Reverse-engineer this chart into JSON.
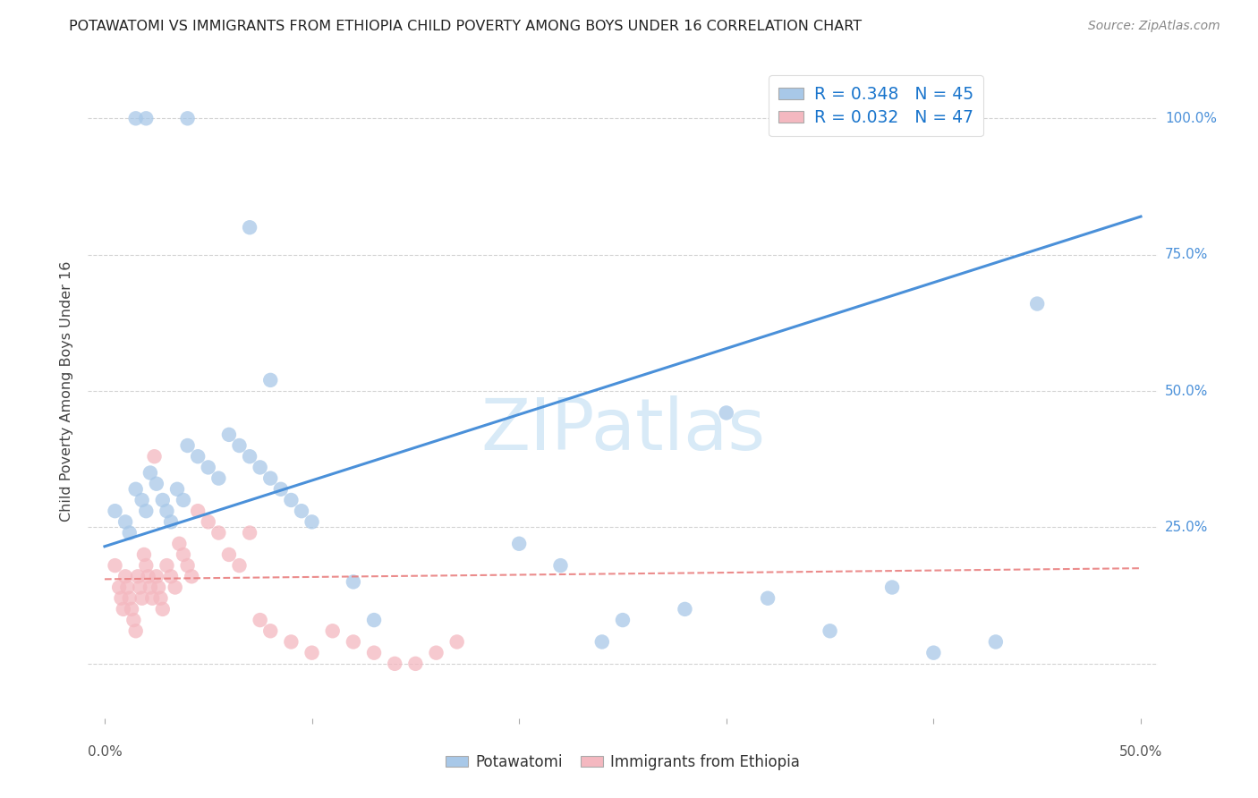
{
  "title": "POTAWATOMI VS IMMIGRANTS FROM ETHIOPIA CHILD POVERTY AMONG BOYS UNDER 16 CORRELATION CHART",
  "source": "Source: ZipAtlas.com",
  "ylabel": "Child Poverty Among Boys Under 16",
  "legend_label1": "R = 0.348   N = 45",
  "legend_label2": "R = 0.032   N = 47",
  "legend_bottom1": "Potawatomi",
  "legend_bottom2": "Immigrants from Ethiopia",
  "color_blue": "#a8c8e8",
  "color_pink": "#f4b8c0",
  "color_blue_line": "#4a90d9",
  "color_pink_line": "#e87878",
  "watermark_color": "#d8eaf7",
  "blue_scatter_x": [
    0.015,
    0.02,
    0.04,
    0.07,
    0.08,
    0.005,
    0.01,
    0.012,
    0.015,
    0.018,
    0.02,
    0.022,
    0.025,
    0.028,
    0.03,
    0.032,
    0.035,
    0.038,
    0.04,
    0.045,
    0.05,
    0.055,
    0.06,
    0.065,
    0.07,
    0.075,
    0.08,
    0.085,
    0.09,
    0.095,
    0.1,
    0.12,
    0.13,
    0.2,
    0.22,
    0.24,
    0.25,
    0.28,
    0.3,
    0.32,
    0.35,
    0.38,
    0.4,
    0.43,
    0.45
  ],
  "blue_scatter_y": [
    1.0,
    1.0,
    1.0,
    0.8,
    0.52,
    0.28,
    0.26,
    0.24,
    0.32,
    0.3,
    0.28,
    0.35,
    0.33,
    0.3,
    0.28,
    0.26,
    0.32,
    0.3,
    0.4,
    0.38,
    0.36,
    0.34,
    0.42,
    0.4,
    0.38,
    0.36,
    0.34,
    0.32,
    0.3,
    0.28,
    0.26,
    0.15,
    0.08,
    0.22,
    0.18,
    0.04,
    0.08,
    0.1,
    0.46,
    0.12,
    0.06,
    0.14,
    0.02,
    0.04,
    0.66
  ],
  "pink_scatter_x": [
    0.005,
    0.007,
    0.008,
    0.009,
    0.01,
    0.011,
    0.012,
    0.013,
    0.014,
    0.015,
    0.016,
    0.017,
    0.018,
    0.019,
    0.02,
    0.021,
    0.022,
    0.023,
    0.024,
    0.025,
    0.026,
    0.027,
    0.028,
    0.03,
    0.032,
    0.034,
    0.036,
    0.038,
    0.04,
    0.042,
    0.045,
    0.05,
    0.055,
    0.06,
    0.065,
    0.07,
    0.075,
    0.08,
    0.09,
    0.1,
    0.11,
    0.12,
    0.13,
    0.14,
    0.15,
    0.16,
    0.17
  ],
  "pink_scatter_y": [
    0.18,
    0.14,
    0.12,
    0.1,
    0.16,
    0.14,
    0.12,
    0.1,
    0.08,
    0.06,
    0.16,
    0.14,
    0.12,
    0.2,
    0.18,
    0.16,
    0.14,
    0.12,
    0.38,
    0.16,
    0.14,
    0.12,
    0.1,
    0.18,
    0.16,
    0.14,
    0.22,
    0.2,
    0.18,
    0.16,
    0.28,
    0.26,
    0.24,
    0.2,
    0.18,
    0.24,
    0.08,
    0.06,
    0.04,
    0.02,
    0.06,
    0.04,
    0.02,
    0.0,
    0.0,
    0.02,
    0.04
  ],
  "blue_line_x": [
    0.0,
    0.5
  ],
  "blue_line_y": [
    0.215,
    0.82
  ],
  "pink_line_x": [
    0.0,
    0.5
  ],
  "pink_line_y": [
    0.155,
    0.175
  ],
  "ytick_vals": [
    0.0,
    0.25,
    0.5,
    0.75,
    1.0
  ],
  "ytick_labels_right": [
    "",
    "25.0%",
    "50.0%",
    "75.0%",
    "100.0%"
  ],
  "xtick_vals": [
    0.0,
    0.1,
    0.2,
    0.3,
    0.4,
    0.5
  ]
}
